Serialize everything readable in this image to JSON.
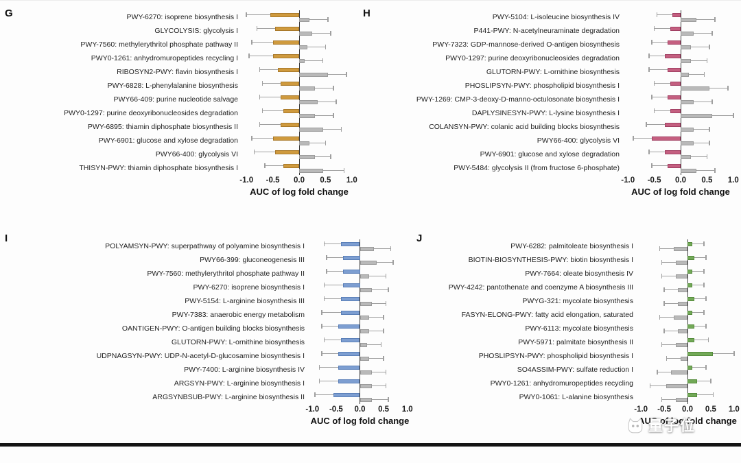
{
  "watermark": {
    "text": "量子位"
  },
  "chart_data": [
    {
      "type": "bar",
      "panel": "G",
      "orientation": "horizontal",
      "xlabel": "AUC of log fold change",
      "xticks": [
        "-1.0",
        "-0.5",
        "0.0",
        "0.5",
        "1.0"
      ],
      "xlim": [
        -1.12,
        1.12
      ],
      "bar_color": "#cf9a3e",
      "bar_border": "#a9792a",
      "gray_color": "#b9b9b9",
      "gray_border": "#9b9b9b",
      "categories": [
        "PWY-6270: isoprene biosynthesis I",
        "GLYCOLYSIS: glycolysis I",
        "PWY-7560: methylerythritol phosphate pathway II",
        "PWY0-1261: anhydromuropeptides recycling I",
        "RIBOSYN2-PWY: flavin biosynthesis I",
        "PWY-6828: L-phenylalanine biosynthesis",
        "PWY66-409: purine nucleotide salvage",
        "PWY0-1297: purine deoxyribonucleosides degradation",
        "PWY-6895: thiamin diphosphate biosynthesis II",
        "PWY-6901: glucose and xylose degradation",
        "PWY66-400: glycolysis VI",
        "THISYN-PWY: thiamin diphosphate biosynthesis I"
      ],
      "series": [
        {
          "name": "colored_bars",
          "values": [
            -0.55,
            -0.45,
            -0.5,
            -0.5,
            -0.4,
            -0.35,
            -0.35,
            -0.3,
            -0.35,
            -0.5,
            -0.45,
            -0.3
          ],
          "whiskers": [
            -1.0,
            -0.8,
            -0.9,
            -0.95,
            -0.75,
            -0.7,
            -0.75,
            -0.7,
            -0.75,
            -0.9,
            -0.85,
            -0.65
          ]
        },
        {
          "name": "gray_bars",
          "values": [
            0.2,
            0.25,
            0.15,
            0.1,
            0.55,
            0.3,
            0.35,
            0.3,
            0.45,
            0.2,
            0.3,
            0.45
          ],
          "whiskers": [
            0.55,
            0.6,
            0.5,
            0.45,
            0.9,
            0.65,
            0.7,
            0.65,
            0.8,
            0.5,
            0.6,
            0.85
          ]
        }
      ]
    },
    {
      "type": "bar",
      "panel": "H",
      "orientation": "horizontal",
      "xlabel": "AUC of log fold change",
      "xticks": [
        "-1.0",
        "-0.5",
        "0.0",
        "0.5",
        "1.0"
      ],
      "xlim": [
        -1.12,
        1.12
      ],
      "bar_color": "#c45f80",
      "bar_border": "#a14063",
      "gray_color": "#b9b9b9",
      "gray_border": "#9b9b9b",
      "categories": [
        "PWY-5104: L-isoleucine biosynthesis IV",
        "P441-PWY: N-acetylneuraminate degradation",
        "PWY-7323: GDP-mannose-derived O-antigen biosynthesis",
        "PWY0-1297: purine deoxyribonucleosides degradation",
        "GLUTORN-PWY: L-ornithine biosynthesis",
        "PHOSLIPSYN-PWY: phospholipid biosynthesis I",
        "PWY-1269: CMP-3-deoxy-D-manno-octulosonate biosynthesis I",
        "DAPLYSINESYN-PWY: L-lysine biosynthesis I",
        "COLANSYN-PWY: colanic acid building blocks biosynthesis",
        "PWY66-400: glycolysis VI",
        "PWY-6901: glucose and xylose degradation",
        "PWY-5484: glycolysis II (from fructose 6-phosphate)"
      ],
      "series": [
        {
          "name": "colored_bars",
          "values": [
            -0.15,
            -0.2,
            -0.25,
            -0.3,
            -0.25,
            -0.2,
            -0.25,
            -0.2,
            -0.3,
            -0.55,
            -0.3,
            -0.25
          ],
          "whiskers": [
            -0.45,
            -0.5,
            -0.55,
            -0.6,
            -0.6,
            -0.5,
            -0.55,
            -0.5,
            -0.65,
            -0.9,
            -0.6,
            -0.55
          ]
        },
        {
          "name": "gray_bars",
          "values": [
            0.3,
            0.25,
            0.2,
            0.2,
            0.15,
            0.55,
            0.25,
            0.6,
            0.25,
            0.25,
            0.2,
            0.3
          ],
          "whiskers": [
            0.65,
            0.6,
            0.55,
            0.5,
            0.45,
            0.9,
            0.6,
            1.0,
            0.55,
            0.55,
            0.5,
            0.65
          ]
        }
      ]
    },
    {
      "type": "bar",
      "panel": "I",
      "orientation": "horizontal",
      "xlabel": "AUC of log fold change",
      "xticks": [
        "-1.0",
        "-0.5",
        "0.0",
        "0.5",
        "1.0"
      ],
      "xlim": [
        -1.12,
        1.12
      ],
      "bar_color": "#7d9ed1",
      "bar_border": "#5a7fb8",
      "gray_color": "#b9b9b9",
      "gray_border": "#9b9b9b",
      "categories": [
        "POLYAMSYN-PWY: superpathway of polyamine biosynthesis I",
        "PWY66-399: gluconeogenesis III",
        "PWY-7560: methylerythritol phosphate pathway II",
        "PWY-6270: isoprene biosynthesis I",
        "PWY-5154: L-arginine biosynthesis III",
        "PWY-7383: anaerobic energy metabolism",
        "OANTIGEN-PWY: O-antigen building blocks biosynthesis",
        "GLUTORN-PWY: L-ornithine biosynthesis",
        "UDPNAGSYN-PWY: UDP-N-acetyl-D-glucosamine biosynthesis I",
        "PWY-7400: L-arginine biosynthesis IV",
        "ARGSYN-PWY: L-arginine biosynthesis I",
        "ARGSYNBSUB-PWY: L-arginine biosynthesis II"
      ],
      "series": [
        {
          "name": "colored_bars",
          "values": [
            -0.4,
            -0.35,
            -0.35,
            -0.35,
            -0.4,
            -0.4,
            -0.45,
            -0.4,
            -0.45,
            -0.45,
            -0.45,
            -0.55
          ],
          "whiskers": [
            -0.75,
            -0.7,
            -0.7,
            -0.75,
            -0.75,
            -0.8,
            -0.8,
            -0.75,
            -0.8,
            -0.85,
            -0.85,
            -0.95
          ]
        },
        {
          "name": "gray_bars",
          "values": [
            0.3,
            0.35,
            0.2,
            0.25,
            0.25,
            0.2,
            0.2,
            0.15,
            0.2,
            0.25,
            0.25,
            0.25
          ],
          "whiskers": [
            0.65,
            0.7,
            0.55,
            0.6,
            0.55,
            0.5,
            0.5,
            0.45,
            0.5,
            0.55,
            0.55,
            0.6
          ]
        }
      ]
    },
    {
      "type": "bar",
      "panel": "J",
      "orientation": "horizontal",
      "xlabel": "AUC of log fold change",
      "xticks": [
        "-1.0",
        "-0.5",
        "0.0",
        "0.5",
        "1.0"
      ],
      "xlim": [
        -1.12,
        1.12
      ],
      "bar_color": "#72a957",
      "bar_border": "#558b3c",
      "gray_color": "#b9b9b9",
      "gray_border": "#9b9b9b",
      "categories": [
        "PWY-6282: palmitoleate biosynthesis I",
        "BIOTIN-BIOSYNTHESIS-PWY: biotin biosynthesis I",
        "PWY-7664: oleate biosynthesis IV",
        "PWY-4242: pantothenate and coenzyme A biosynthesis III",
        "PWYG-321: mycolate biosynthesis",
        "FASYN-ELONG-PWY: fatty acid elongation, saturated",
        "PWY-6113: mycolate biosynthesis",
        "PWY-5971: palmitate biosynthesis II",
        "PHOSLIPSYN-PWY: phospholipid biosynthesis I",
        "SO4ASSIM-PWY: sulfate reduction I",
        "PWY0-1261: anhydromuropeptides recycling",
        "PWY0-1061: L-alanine biosynthesis"
      ],
      "series": [
        {
          "name": "colored_bars",
          "values": [
            0.1,
            0.15,
            0.1,
            0.1,
            0.15,
            0.1,
            0.15,
            0.15,
            0.55,
            0.1,
            0.2,
            0.2
          ],
          "whiskers": [
            0.35,
            0.4,
            0.35,
            0.35,
            0.4,
            0.35,
            0.4,
            0.45,
            1.0,
            0.4,
            0.5,
            0.55
          ]
        },
        {
          "name": "gray_bars",
          "values": [
            -0.3,
            -0.25,
            -0.25,
            -0.2,
            -0.2,
            -0.3,
            -0.2,
            -0.25,
            -0.15,
            -0.35,
            -0.45,
            -0.25
          ],
          "whiskers": [
            -0.6,
            -0.55,
            -0.55,
            -0.5,
            -0.5,
            -0.6,
            -0.5,
            -0.55,
            -0.45,
            -0.65,
            -0.8,
            -0.55
          ]
        }
      ]
    }
  ]
}
